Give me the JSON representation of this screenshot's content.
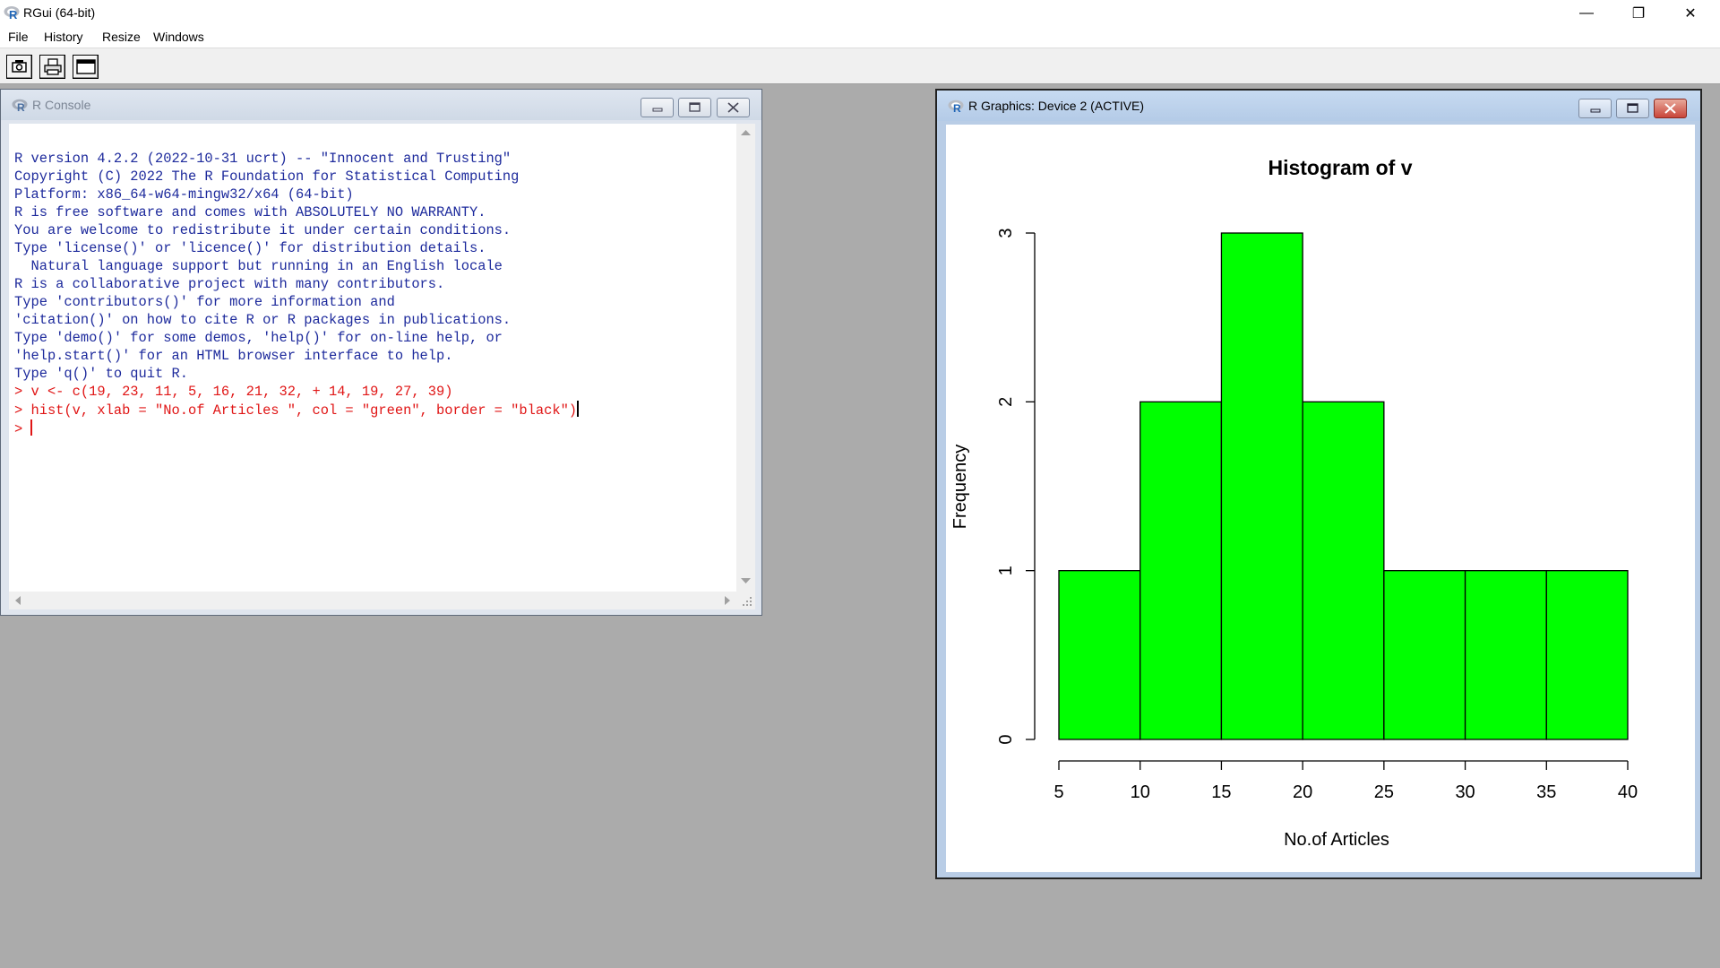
{
  "window": {
    "title": "RGui (64-bit)",
    "controls": [
      "—",
      "❐",
      "✕"
    ]
  },
  "menu": [
    "File",
    "History",
    "Resize",
    "Windows"
  ],
  "toolbar": {
    "buttons": [
      "open-script-icon",
      "print-icon",
      "window-icon"
    ]
  },
  "console": {
    "title": "R Console",
    "output_lines": [
      "R version 4.2.2 (2022-10-31 ucrt) -- \"Innocent and Trusting\"",
      "Copyright (C) 2022 The R Foundation for Statistical Computing",
      "Platform: x86_64-w64-mingw32/x64 (64-bit)",
      "",
      "R is free software and comes with ABSOLUTELY NO WARRANTY.",
      "You are welcome to redistribute it under certain conditions.",
      "Type 'license()' or 'licence()' for distribution details.",
      "",
      "  Natural language support but running in an English locale",
      "",
      "R is a collaborative project with many contributors.",
      "Type 'contributors()' for more information and",
      "'citation()' on how to cite R or R packages in publications.",
      "",
      "Type 'demo()' for some demos, 'help()' for on-line help, or",
      "'help.start()' for an HTML browser interface to help.",
      "Type 'q()' to quit R.",
      ""
    ],
    "command_lines": [
      "> v <- c(19, 23, 11, 5, 16, 21, 32, + 14, 19, 27, 39)",
      "> hist(v, xlab = \"No.of Articles \", col = \"green\", border = \"black\")"
    ],
    "prompt": "> "
  },
  "graphics": {
    "title": "R Graphics: Device 2 (ACTIVE)"
  },
  "colors": {
    "bar_fill": "#00ff00",
    "bar_border": "#000000",
    "console_output": "#1d2a9c",
    "console_command": "#e01515"
  },
  "chart_data": {
    "type": "bar",
    "title": "Histogram of v",
    "xlabel": "No.of Articles",
    "ylabel": "Frequency",
    "bins": [
      [
        5,
        10
      ],
      [
        10,
        15
      ],
      [
        15,
        20
      ],
      [
        20,
        25
      ],
      [
        25,
        30
      ],
      [
        30,
        35
      ],
      [
        35,
        40
      ]
    ],
    "values": [
      1,
      2,
      3,
      2,
      1,
      1,
      1
    ],
    "xlim": [
      5,
      40
    ],
    "ylim": [
      0,
      3
    ],
    "xticks": [
      5,
      10,
      15,
      20,
      25,
      30,
      35,
      40
    ],
    "yticks": [
      0,
      1,
      2,
      3
    ],
    "grid": false,
    "legend": "none"
  }
}
